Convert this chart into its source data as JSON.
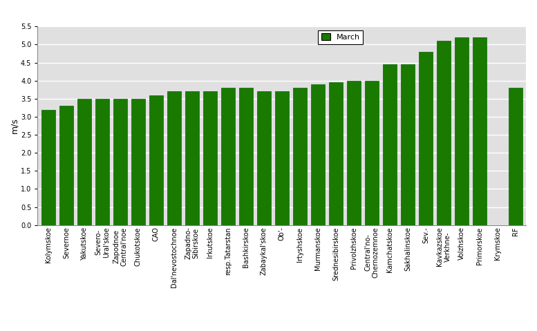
{
  "categories": [
    "Kolymskoe",
    "Severnoe",
    "Yakutskoe",
    "Severo-\nUral'skoe",
    "Zapodnoe\nCentral'noe",
    "Chukotskoe",
    "CAO",
    "Dal'nevostochnoe",
    "Zapadno-\nSibirskoe",
    "Irkutskoe",
    "resp.Tatarstan",
    "Bashkirskoe",
    "Zabaykal'skoe",
    "Ob'-",
    "Irtyshskoe",
    "Murmanskoe",
    "Srednesibirskoe",
    "Privolzhskoe",
    "Central'no-\nChernozemnoe",
    "Kamchatskoe",
    "Sakhalinskoe",
    "Sev.-",
    "Kavkazskoe\nVerkhne-",
    "Volzhskoe",
    "Primorskoe",
    "Krymskoe",
    "RF"
  ],
  "values": [
    3.2,
    3.3,
    3.5,
    3.5,
    3.5,
    3.5,
    3.6,
    3.7,
    3.7,
    3.7,
    3.8,
    3.8,
    3.7,
    3.7,
    3.8,
    3.9,
    3.95,
    4.0,
    4.0,
    4.45,
    4.45,
    4.8,
    5.1,
    5.2,
    5.2,
    0.0,
    3.8
  ],
  "bar_color": "#1a7a00",
  "ylabel": "m/s",
  "ylim": [
    0,
    5.5
  ],
  "yticks": [
    0,
    0.5,
    1.0,
    1.5,
    2.0,
    2.5,
    3.0,
    3.5,
    4.0,
    4.5,
    5.0,
    5.5
  ],
  "legend_label": "March",
  "legend_color": "#1a7a00",
  "bg_color": "#e0e0e0",
  "grid_color": "#ffffff",
  "axis_fontsize": 9,
  "tick_fontsize": 7
}
